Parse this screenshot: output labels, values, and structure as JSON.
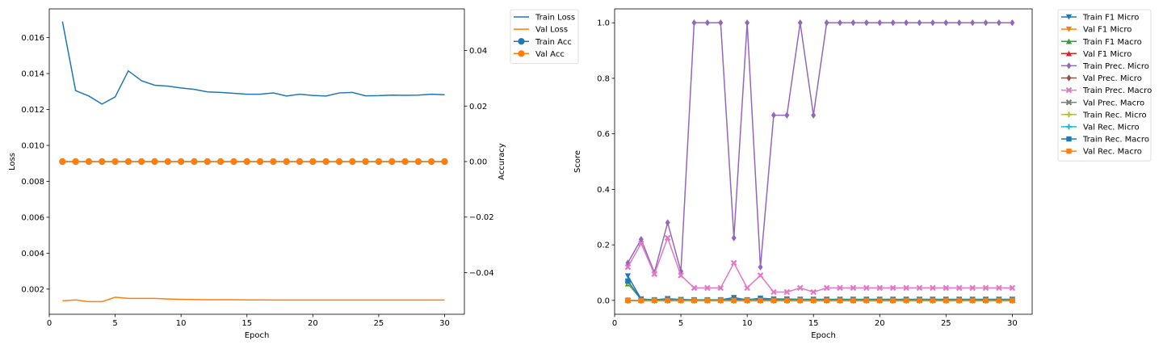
{
  "chart_data": [
    {
      "type": "line",
      "title": "",
      "xlabel": "Epoch",
      "ylabel": "Loss",
      "y2label": "Accuracy",
      "xlim": [
        0,
        31.5
      ],
      "ylim": [
        0.0006,
        0.0176
      ],
      "y2lim": [
        -0.055,
        0.055
      ],
      "xticks": [
        0,
        5,
        10,
        15,
        20,
        25,
        30
      ],
      "yticks": [
        0.002,
        0.004,
        0.006,
        0.008,
        0.01,
        0.012,
        0.014,
        0.016
      ],
      "ytick_labels": [
        "0.002",
        "0.004",
        "0.006",
        "0.008",
        "0.010",
        "0.012",
        "0.014",
        "0.016"
      ],
      "y2ticks": [
        -0.04,
        -0.02,
        0.0,
        0.02,
        0.04
      ],
      "y2tick_labels": [
        "−0.04",
        "−0.02",
        "0.00",
        "0.02",
        "0.04"
      ],
      "grid": false,
      "legend_position": "outside-right-top",
      "x": [
        1,
        2,
        3,
        4,
        5,
        6,
        7,
        8,
        9,
        10,
        11,
        12,
        13,
        14,
        15,
        16,
        17,
        18,
        19,
        20,
        21,
        22,
        23,
        24,
        25,
        26,
        27,
        28,
        29,
        30
      ],
      "series": [
        {
          "name": "Train Loss",
          "axis": "left",
          "color": "#1f77b4",
          "marker": "none",
          "values": [
            0.0169,
            0.01305,
            0.01275,
            0.0123,
            0.0127,
            0.01415,
            0.0136,
            0.01335,
            0.0133,
            0.0132,
            0.01312,
            0.01298,
            0.01295,
            0.0129,
            0.01285,
            0.01285,
            0.01292,
            0.01275,
            0.01285,
            0.01278,
            0.01275,
            0.01292,
            0.01295,
            0.01276,
            0.01277,
            0.0128,
            0.01279,
            0.0128,
            0.01285,
            0.01282
          ]
        },
        {
          "name": "Val Loss",
          "axis": "left",
          "color": "#ff7f0e",
          "marker": "none",
          "values": [
            0.00135,
            0.0014,
            0.0013,
            0.0013,
            0.00155,
            0.00148,
            0.00148,
            0.00148,
            0.00145,
            0.00143,
            0.00142,
            0.00141,
            0.00141,
            0.00141,
            0.0014,
            0.0014,
            0.00139,
            0.00139,
            0.00139,
            0.00139,
            0.00139,
            0.00139,
            0.00139,
            0.00139,
            0.00139,
            0.00139,
            0.00139,
            0.00139,
            0.00139,
            0.00139
          ]
        },
        {
          "name": "Train Acc",
          "axis": "right",
          "color": "#1f77b4",
          "marker": "circle",
          "values": [
            0,
            0,
            0,
            0,
            0,
            0,
            0,
            0,
            0,
            0,
            0,
            0,
            0,
            0,
            0,
            0,
            0,
            0,
            0,
            0,
            0,
            0,
            0,
            0,
            0,
            0,
            0,
            0,
            0,
            0
          ]
        },
        {
          "name": "Val Acc",
          "axis": "right",
          "color": "#ff7f0e",
          "marker": "circle",
          "values": [
            0,
            0,
            0,
            0,
            0,
            0,
            0,
            0,
            0,
            0,
            0,
            0,
            0,
            0,
            0,
            0,
            0,
            0,
            0,
            0,
            0,
            0,
            0,
            0,
            0,
            0,
            0,
            0,
            0,
            0
          ]
        }
      ]
    },
    {
      "type": "line",
      "title": "",
      "xlabel": "Epoch",
      "ylabel": "Score",
      "xlim": [
        0,
        31.5
      ],
      "ylim": [
        -0.05,
        1.05
      ],
      "xticks": [
        0,
        5,
        10,
        15,
        20,
        25,
        30
      ],
      "yticks": [
        0.0,
        0.2,
        0.4,
        0.6,
        0.8,
        1.0
      ],
      "ytick_labels": [
        "0.0",
        "0.2",
        "0.4",
        "0.6",
        "0.8",
        "1.0"
      ],
      "grid": false,
      "legend_position": "outside-right-top",
      "x": [
        1,
        2,
        3,
        4,
        5,
        6,
        7,
        8,
        9,
        10,
        11,
        12,
        13,
        14,
        15,
        16,
        17,
        18,
        19,
        20,
        21,
        22,
        23,
        24,
        25,
        26,
        27,
        28,
        29,
        30
      ],
      "series": [
        {
          "name": "Train F1 Micro",
          "color": "#1f77b4",
          "marker": "tri-down",
          "values": [
            0.088,
            0.005,
            0.002,
            0.006,
            0.003,
            0.002,
            0.002,
            0.002,
            0.01,
            0.002,
            0.008,
            0.005,
            0.005,
            0.004,
            0.004,
            0.004,
            0.004,
            0.004,
            0.004,
            0.004,
            0.004,
            0.004,
            0.004,
            0.004,
            0.004,
            0.004,
            0.004,
            0.004,
            0.004,
            0.004
          ]
        },
        {
          "name": "Val F1 Micro",
          "color": "#ff7f0e",
          "marker": "tri-down",
          "values": [
            0,
            0,
            0,
            0,
            0,
            0,
            0,
            0,
            0,
            0,
            0,
            0,
            0,
            0,
            0,
            0,
            0,
            0,
            0,
            0,
            0,
            0,
            0,
            0,
            0,
            0,
            0,
            0,
            0,
            0
          ]
        },
        {
          "name": "Train F1 Macro",
          "color": "#2ca02c",
          "marker": "tri-up",
          "values": [
            0.06,
            0.004,
            0.002,
            0.005,
            0.002,
            0.002,
            0.002,
            0.002,
            0.008,
            0.002,
            0.006,
            0.004,
            0.004,
            0.003,
            0.003,
            0.003,
            0.003,
            0.003,
            0.003,
            0.003,
            0.003,
            0.003,
            0.003,
            0.003,
            0.003,
            0.003,
            0.003,
            0.003,
            0.003,
            0.003
          ]
        },
        {
          "name": "Val F1 Micro",
          "color": "#d62728",
          "marker": "tri-up",
          "values": [
            0,
            0,
            0,
            0,
            0,
            0,
            0,
            0,
            0,
            0,
            0,
            0,
            0,
            0,
            0,
            0,
            0,
            0,
            0,
            0,
            0,
            0,
            0,
            0,
            0,
            0,
            0,
            0,
            0,
            0
          ]
        },
        {
          "name": "Train Prec. Micro",
          "color": "#9467bd",
          "marker": "diamond",
          "values": [
            0.135,
            0.22,
            0.1,
            0.28,
            0.105,
            1,
            1,
            1,
            0.225,
            1,
            0.12,
            0.667,
            0.667,
            1,
            0.667,
            1,
            1,
            1,
            1,
            1,
            1,
            1,
            1,
            1,
            1,
            1,
            1,
            1,
            1,
            1
          ]
        },
        {
          "name": "Val Prec. Micro",
          "color": "#8c564b",
          "marker": "diamond",
          "values": [
            0,
            0,
            0,
            0,
            0,
            0,
            0,
            0,
            0,
            0,
            0,
            0,
            0,
            0,
            0,
            0,
            0,
            0,
            0,
            0,
            0,
            0,
            0,
            0,
            0,
            0,
            0,
            0,
            0,
            0
          ]
        },
        {
          "name": "Train Prec. Macro",
          "color": "#e377c2",
          "marker": "x",
          "values": [
            0.12,
            0.205,
            0.095,
            0.225,
            0.09,
            0.045,
            0.045,
            0.045,
            0.135,
            0.045,
            0.09,
            0.03,
            0.03,
            0.045,
            0.03,
            0.045,
            0.045,
            0.045,
            0.045,
            0.045,
            0.045,
            0.045,
            0.045,
            0.045,
            0.045,
            0.045,
            0.045,
            0.045,
            0.045,
            0.045
          ]
        },
        {
          "name": "Val Prec. Macro",
          "color": "#7f7f7f",
          "marker": "x",
          "values": [
            0,
            0,
            0,
            0,
            0,
            0,
            0,
            0,
            0,
            0,
            0,
            0,
            0,
            0,
            0,
            0,
            0,
            0,
            0,
            0,
            0,
            0,
            0,
            0,
            0,
            0,
            0,
            0,
            0,
            0
          ]
        },
        {
          "name": "Train Rec. Micro",
          "color": "#bcbd22",
          "marker": "plus",
          "values": [
            0.065,
            0.003,
            0.001,
            0.003,
            0.002,
            0.001,
            0.001,
            0.001,
            0.005,
            0.001,
            0.004,
            0.002,
            0.002,
            0.002,
            0.002,
            0.002,
            0.002,
            0.002,
            0.002,
            0.002,
            0.002,
            0.002,
            0.002,
            0.002,
            0.002,
            0.002,
            0.002,
            0.002,
            0.002,
            0.002
          ]
        },
        {
          "name": "Val Rec. Micro",
          "color": "#17becf",
          "marker": "plus",
          "values": [
            0,
            0,
            0,
            0,
            0,
            0,
            0,
            0,
            0,
            0,
            0,
            0,
            0,
            0,
            0,
            0,
            0,
            0,
            0,
            0,
            0,
            0,
            0,
            0,
            0,
            0,
            0,
            0,
            0,
            0
          ]
        },
        {
          "name": "Train Rec. Macro",
          "color": "#1f77b4",
          "marker": "square",
          "values": [
            0.07,
            0.003,
            0.001,
            0.003,
            0.002,
            0.001,
            0.001,
            0.001,
            0.005,
            0.001,
            0.004,
            0.002,
            0.002,
            0.002,
            0.002,
            0.002,
            0.002,
            0.002,
            0.002,
            0.002,
            0.002,
            0.002,
            0.002,
            0.002,
            0.002,
            0.002,
            0.002,
            0.002,
            0.002,
            0.002
          ]
        },
        {
          "name": "Val Rec. Macro",
          "color": "#ff7f0e",
          "marker": "square",
          "values": [
            0,
            0,
            0,
            0,
            0,
            0,
            0,
            0,
            0,
            0,
            0,
            0,
            0,
            0,
            0,
            0,
            0,
            0,
            0,
            0,
            0,
            0,
            0,
            0,
            0,
            0,
            0,
            0,
            0,
            0
          ]
        }
      ]
    }
  ]
}
